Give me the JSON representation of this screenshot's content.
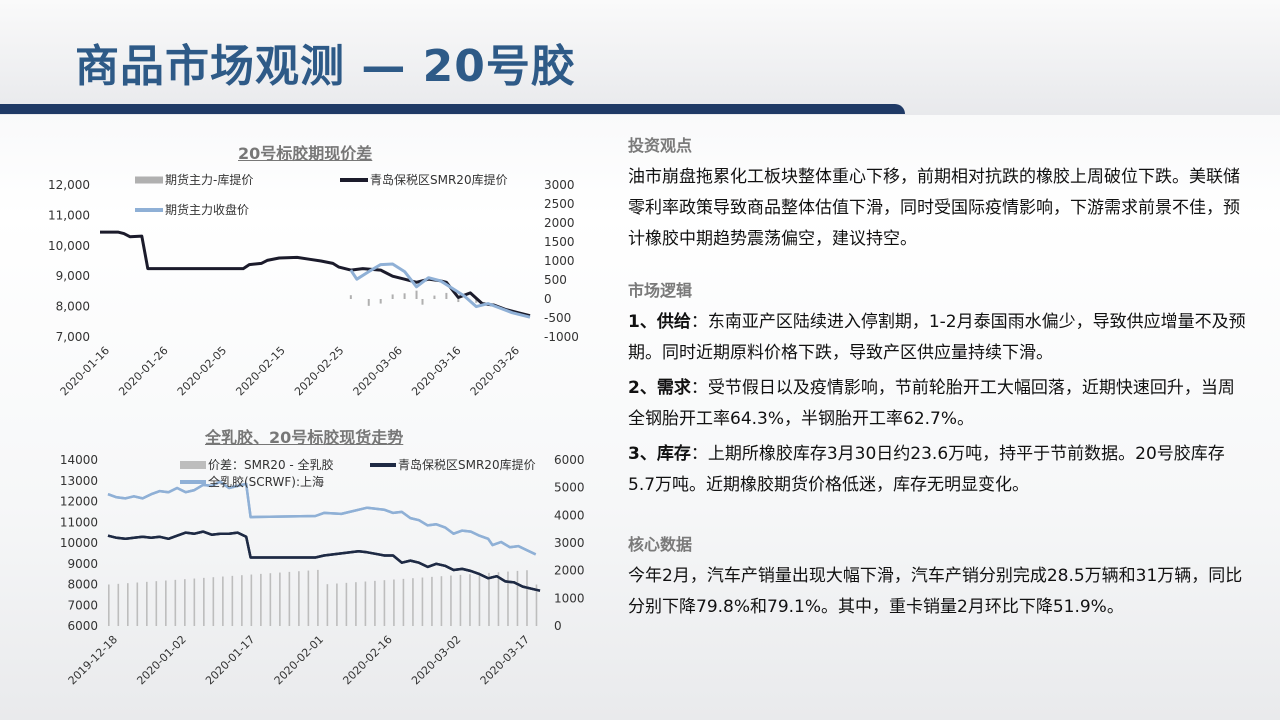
{
  "slide": {
    "title": "商品市场观测 — 20号胶"
  },
  "chart_data": [
    {
      "type": "line",
      "title": "20号标胶期现价差",
      "legend": [
        "期货主力-库提价",
        "青岛保税区SMR20库提价",
        "期货主力收盘价"
      ],
      "x_ticks": [
        "2020-01-16",
        "2020-01-26",
        "2020-02-05",
        "2020-02-15",
        "2020-02-25",
        "2020-03-06",
        "2020-03-16",
        "2020-03-26"
      ],
      "y_left_ticks": [
        "12,000",
        "11,000",
        "10,000",
        "9,000",
        "8,000",
        "7,000"
      ],
      "y_right_ticks": [
        "3000",
        "2500",
        "2000",
        "1500",
        "1000",
        "500",
        "0",
        "-500",
        "-1000"
      ],
      "ylim_left": [
        7000,
        12000
      ],
      "ylim_right": [
        -1000,
        3000
      ],
      "series": [
        {
          "name": "青岛保税区SMR20库提价",
          "color": "#1b1b2b",
          "axis": "left",
          "points": [
            [
              0,
              10450
            ],
            [
              3,
              10450
            ],
            [
              4,
              10400
            ],
            [
              5,
              10300
            ],
            [
              7,
              10320
            ],
            [
              8,
              9250
            ],
            [
              24,
              9250
            ],
            [
              25,
              9380
            ],
            [
              27,
              9420
            ],
            [
              28,
              9520
            ],
            [
              30,
              9600
            ],
            [
              33,
              9620
            ],
            [
              35,
              9560
            ],
            [
              37,
              9500
            ],
            [
              39,
              9420
            ],
            [
              40,
              9300
            ],
            [
              42,
              9200
            ],
            [
              44,
              9250
            ],
            [
              47,
              9200
            ],
            [
              49,
              9000
            ],
            [
              51,
              8900
            ],
            [
              53,
              8800
            ],
            [
              55,
              8900
            ],
            [
              57,
              8850
            ],
            [
              58,
              8800
            ],
            [
              60,
              8300
            ],
            [
              62,
              8450
            ],
            [
              64,
              8100
            ],
            [
              66,
              8050
            ],
            [
              68,
              7900
            ],
            [
              70,
              7800
            ],
            [
              72,
              7700
            ]
          ]
        },
        {
          "name": "期货主力收盘价",
          "color": "#8fb0d6",
          "axis": "left",
          "points": [
            [
              42,
              9200
            ],
            [
              43,
              8900
            ],
            [
              45,
              9150
            ],
            [
              47,
              9380
            ],
            [
              49,
              9400
            ],
            [
              51,
              9150
            ],
            [
              53,
              8650
            ],
            [
              55,
              8950
            ],
            [
              57,
              8850
            ],
            [
              59,
              8600
            ],
            [
              61,
              8350
            ],
            [
              63,
              8000
            ],
            [
              65,
              8100
            ],
            [
              67,
              7950
            ],
            [
              69,
              7800
            ],
            [
              72,
              7650
            ]
          ]
        },
        {
          "name": "期货主力-库提价",
          "color": "#b0b0b0",
          "type": "bar",
          "axis": "right",
          "points": [
            [
              42,
              100
            ],
            [
              45,
              -180
            ],
            [
              47,
              -120
            ],
            [
              49,
              120
            ],
            [
              51,
              150
            ],
            [
              53,
              220
            ],
            [
              54,
              -150
            ],
            [
              56,
              90
            ],
            [
              58,
              160
            ],
            [
              60,
              -80
            ],
            [
              63,
              -100
            ]
          ]
        }
      ]
    },
    {
      "type": "line",
      "title": "全乳胶、20号标胶现货走势",
      "legend": [
        "价差：SMR20 - 全乳胶",
        "青岛保税区SMR20库提价",
        "全乳胶(SCRWF):上海"
      ],
      "x_ticks": [
        "2019-12-18",
        "2020-01-02",
        "2020-01-17",
        "2020-02-01",
        "2020-02-16",
        "2020-03-02",
        "2020-03-17"
      ],
      "y_left_ticks": [
        "14000",
        "13000",
        "12000",
        "11000",
        "10000",
        "9000",
        "8000",
        "7000",
        "6000"
      ],
      "y_right_ticks": [
        "6000",
        "5000",
        "4000",
        "3000",
        "2000",
        "1000",
        "0"
      ],
      "ylim_left": [
        6000,
        14000
      ],
      "ylim_right": [
        0,
        6000
      ],
      "series": [
        {
          "name": "全乳胶(SCRWF):上海",
          "color": "#8fb0d6",
          "axis": "left",
          "points": [
            [
              0,
              12350
            ],
            [
              2,
              12200
            ],
            [
              4,
              12150
            ],
            [
              6,
              12250
            ],
            [
              8,
              12150
            ],
            [
              10,
              12350
            ],
            [
              12,
              12500
            ],
            [
              14,
              12450
            ],
            [
              16,
              12650
            ],
            [
              18,
              12450
            ],
            [
              20,
              12550
            ],
            [
              22,
              12800
            ],
            [
              24,
              12750
            ],
            [
              26,
              12950
            ],
            [
              28,
              12650
            ],
            [
              30,
              12750
            ],
            [
              32,
              12850
            ],
            [
              33,
              11250
            ],
            [
              48,
              11300
            ],
            [
              50,
              11450
            ],
            [
              54,
              11400
            ],
            [
              60,
              11700
            ],
            [
              62,
              11650
            ],
            [
              64,
              11600
            ],
            [
              66,
              11450
            ],
            [
              68,
              11500
            ],
            [
              70,
              11200
            ],
            [
              72,
              11100
            ],
            [
              74,
              10850
            ],
            [
              76,
              10900
            ],
            [
              78,
              10750
            ],
            [
              80,
              10450
            ],
            [
              82,
              10600
            ],
            [
              84,
              10550
            ],
            [
              86,
              10350
            ],
            [
              88,
              10200
            ],
            [
              89,
              9900
            ],
            [
              91,
              10050
            ],
            [
              93,
              9800
            ],
            [
              95,
              9850
            ],
            [
              97,
              9650
            ],
            [
              99,
              9450
            ]
          ]
        },
        {
          "name": "青岛保税区SMR20库提价",
          "color": "#1e2a44",
          "axis": "left",
          "points": [
            [
              0,
              10350
            ],
            [
              2,
              10250
            ],
            [
              4,
              10200
            ],
            [
              6,
              10250
            ],
            [
              8,
              10300
            ],
            [
              10,
              10250
            ],
            [
              12,
              10300
            ],
            [
              14,
              10200
            ],
            [
              16,
              10350
            ],
            [
              18,
              10500
            ],
            [
              20,
              10450
            ],
            [
              22,
              10550
            ],
            [
              24,
              10400
            ],
            [
              26,
              10450
            ],
            [
              28,
              10450
            ],
            [
              30,
              10500
            ],
            [
              32,
              10300
            ],
            [
              33,
              9300
            ],
            [
              48,
              9300
            ],
            [
              50,
              9400
            ],
            [
              54,
              9500
            ],
            [
              58,
              9600
            ],
            [
              60,
              9550
            ],
            [
              64,
              9400
            ],
            [
              66,
              9400
            ],
            [
              68,
              9050
            ],
            [
              70,
              9150
            ],
            [
              72,
              9050
            ],
            [
              74,
              8850
            ],
            [
              76,
              9000
            ],
            [
              78,
              8900
            ],
            [
              80,
              8700
            ],
            [
              82,
              8750
            ],
            [
              84,
              8650
            ],
            [
              86,
              8500
            ],
            [
              88,
              8300
            ],
            [
              90,
              8400
            ],
            [
              92,
              8150
            ],
            [
              94,
              8100
            ],
            [
              96,
              7900
            ],
            [
              98,
              7800
            ],
            [
              100,
              7700
            ]
          ]
        },
        {
          "name": "价差：SMR20 - 全乳胶",
          "color": "#bdbdbd",
          "type": "bar",
          "axis": "right",
          "values_note": "gray bars around 1600-2000 on right axis"
        }
      ]
    }
  ],
  "right_panel": {
    "s1_title": "投资观点",
    "s1_text": "油市崩盘拖累化工板块整体重心下移，前期相对抗跌的橡胶上周破位下跌。美联储零利率政策导致商品整体估值下滑，同时受国际疫情影响，下游需求前景不佳，预计橡胶中期趋势震荡偏空，建议持空。",
    "s2_title": "市场逻辑",
    "s2_p1_label": "1、供给",
    "s2_p1_text": "：东南亚产区陆续进入停割期，1-2月泰国雨水偏少，导致供应增量不及预期。同时近期原料价格下跌，导致产区供应量持续下滑。",
    "s2_p2_label": "2、需求",
    "s2_p2_text": "：受节假日以及疫情影响，节前轮胎开工大幅回落，近期快速回升，当周全钢胎开工率64.3%，半钢胎开工率62.7%。",
    "s2_p3_label": "3、库存",
    "s2_p3_text": "：上期所橡胶库存3月30日约23.6万吨，持平于节前数据。20号胶库存5.7万吨。近期橡胶期货价格低迷，库存无明显变化。",
    "s3_title": "核心数据",
    "s3_text": "今年2月，汽车产销量出现大幅下滑，汽车产销分别完成28.5万辆和31万辆，同比分别下降79.8%和79.1%。其中，重卡销量2月环比下降51.9%。"
  }
}
